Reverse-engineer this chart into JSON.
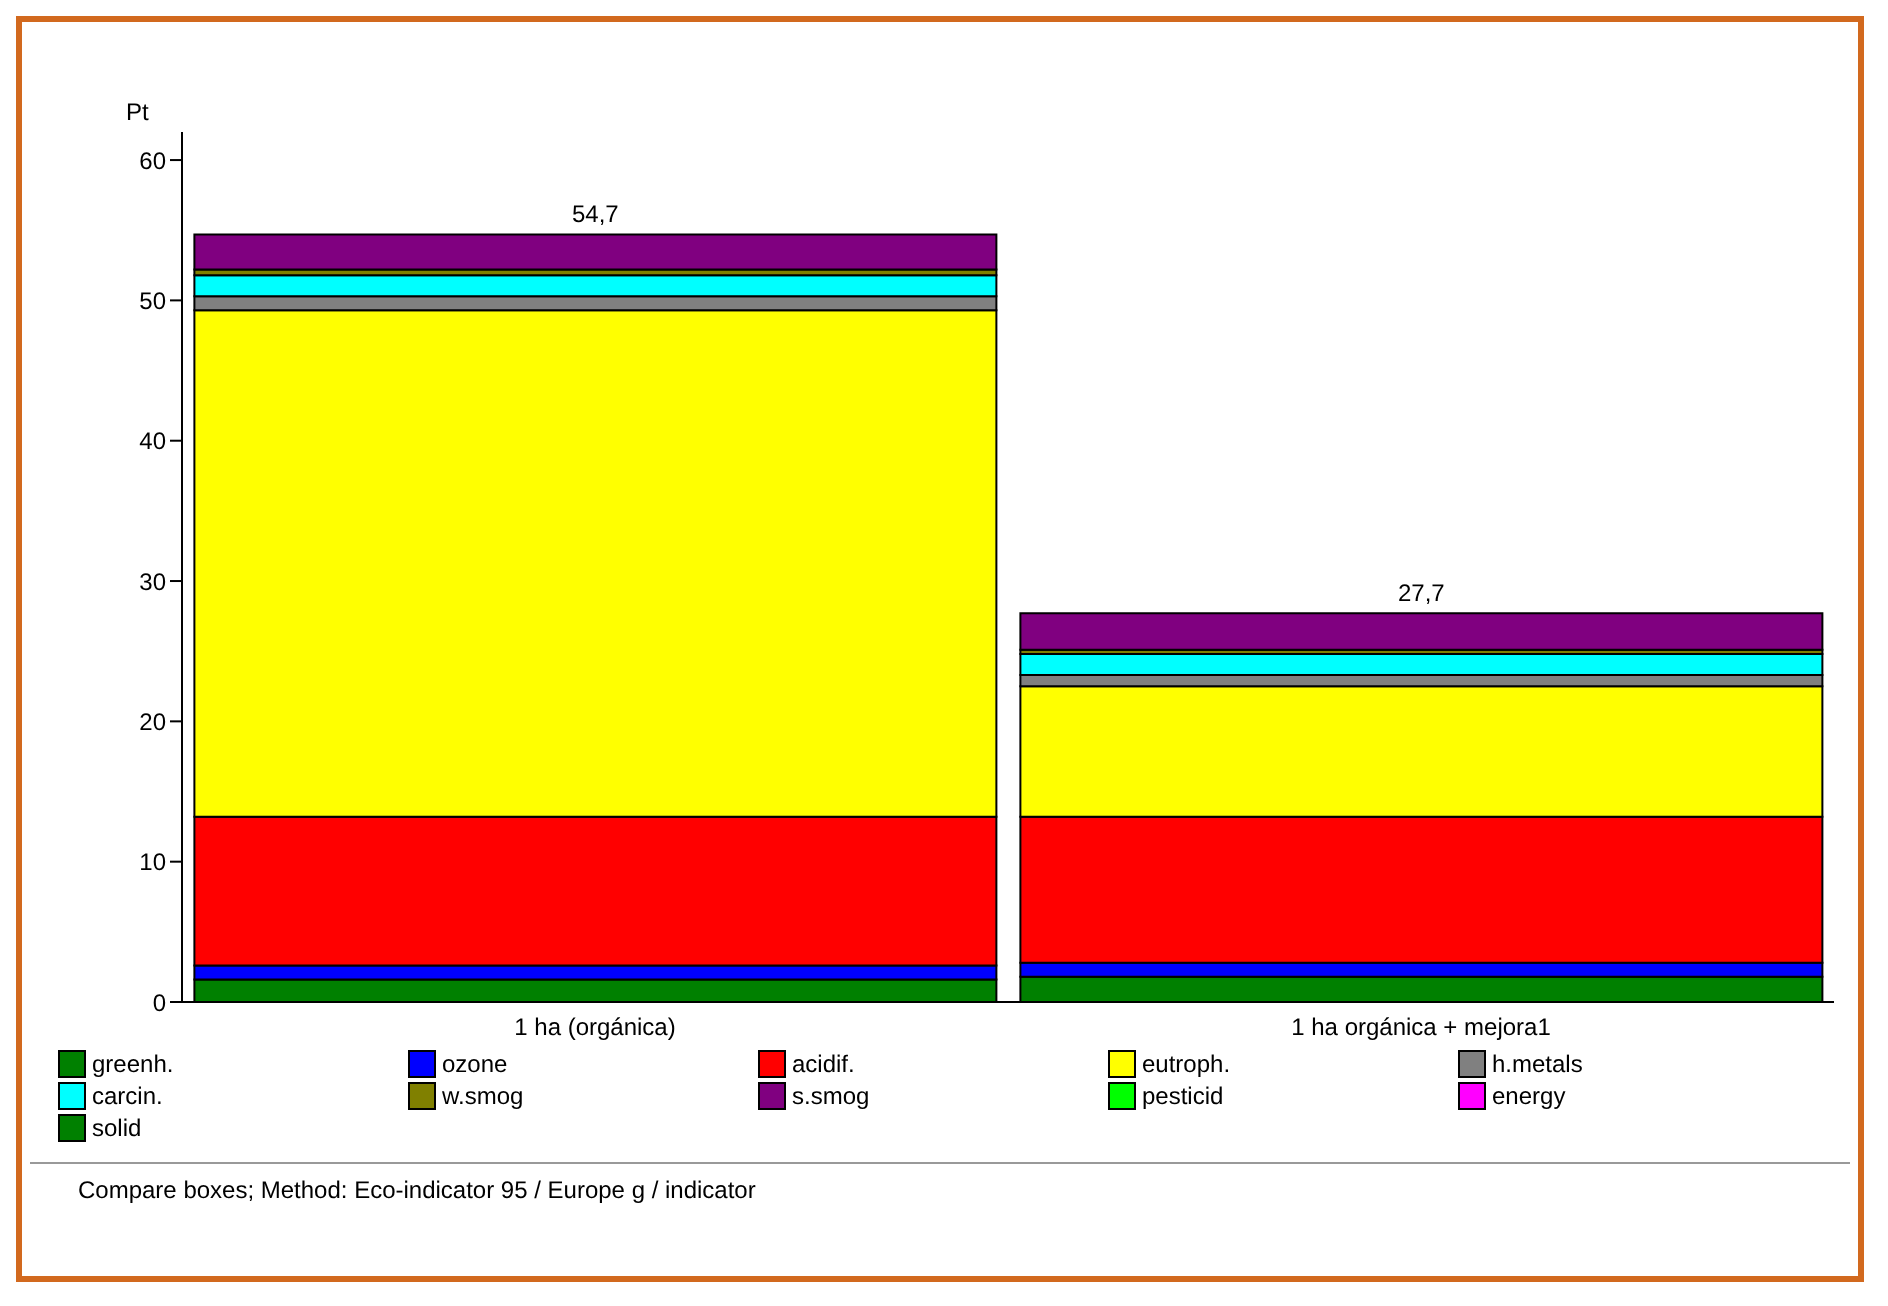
{
  "chart_data": {
    "type": "bar",
    "stacked": true,
    "ylabel": "Pt",
    "categories": [
      "1 ha (orgánica)",
      "1 ha orgánica + mejora1"
    ],
    "series": [
      {
        "name": "greenh.",
        "color": "#008000",
        "values": [
          1.6,
          1.8
        ]
      },
      {
        "name": "ozone",
        "color": "#0000ff",
        "values": [
          1.0,
          1.0
        ]
      },
      {
        "name": "acidif.",
        "color": "#ff0000",
        "values": [
          10.6,
          10.4
        ]
      },
      {
        "name": "eutroph.",
        "color": "#ffff00",
        "values": [
          36.1,
          9.3
        ]
      },
      {
        "name": "h.metals",
        "color": "#808080",
        "values": [
          1.0,
          0.8
        ]
      },
      {
        "name": "carcin.",
        "color": "#00ffff",
        "values": [
          1.5,
          1.5
        ]
      },
      {
        "name": "w.smog",
        "color": "#808000",
        "values": [
          0.4,
          0.3
        ]
      },
      {
        "name": "s.smog",
        "color": "#800080",
        "values": [
          2.5,
          2.6
        ]
      },
      {
        "name": "pesticid",
        "color": "#00ff00",
        "values": [
          0,
          0
        ]
      },
      {
        "name": "energy",
        "color": "#ff00ff",
        "values": [
          0,
          0
        ]
      },
      {
        "name": "solid",
        "color": "#008000",
        "values": [
          0,
          0
        ]
      }
    ],
    "totals": [
      "54,7",
      "27,7"
    ],
    "ylim": [
      0,
      62
    ],
    "yticks": [
      0,
      10,
      20,
      30,
      40,
      50,
      60
    ],
    "grid": false,
    "legend": "bottom",
    "annotations": [
      "Compare boxes;  Method: Eco-indicator 95 /  Europe g / indicator"
    ]
  }
}
